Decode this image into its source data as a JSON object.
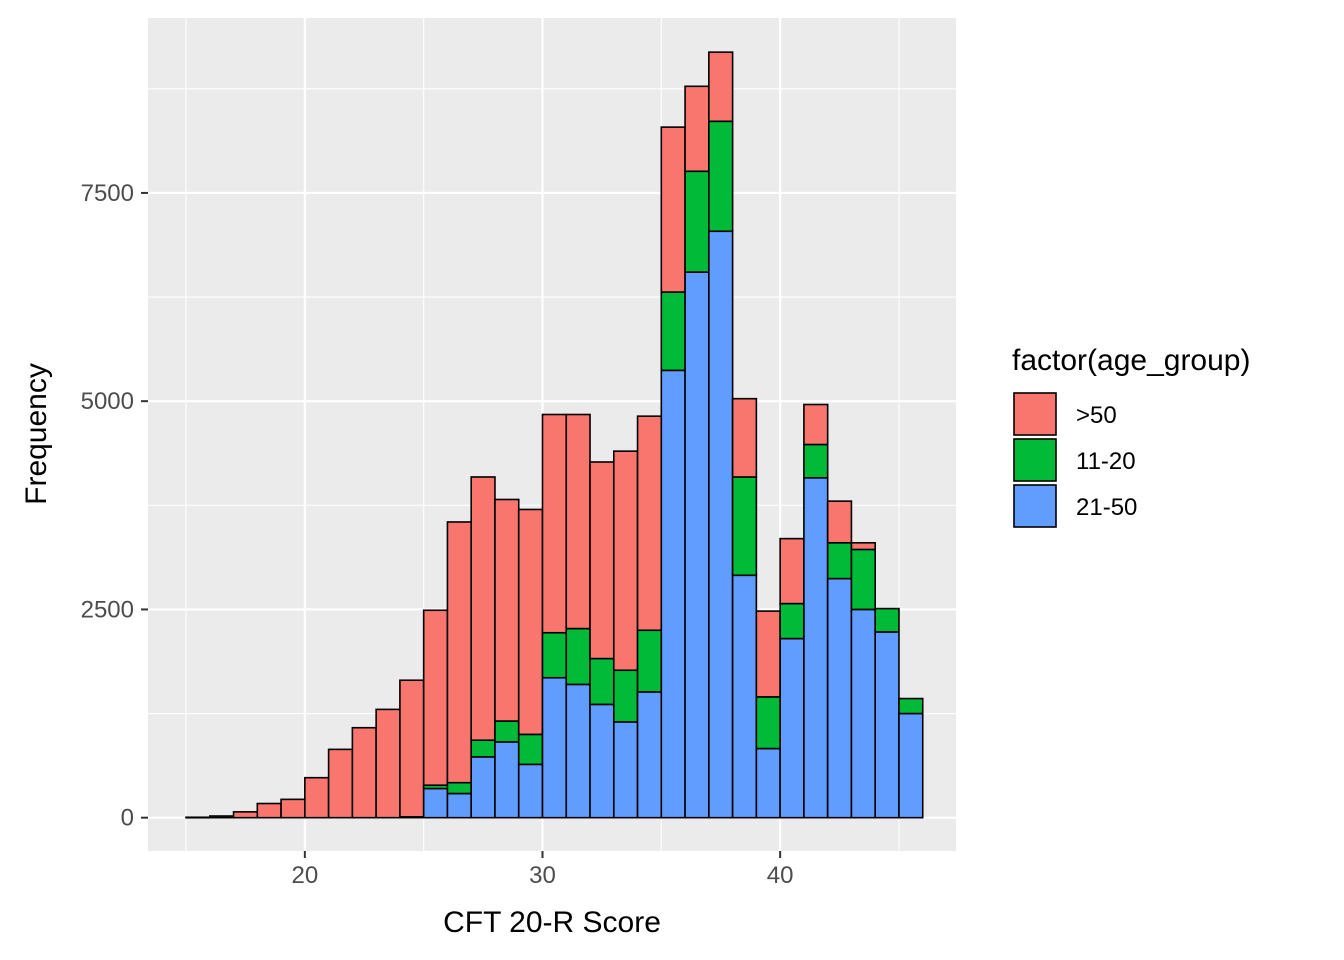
{
  "chart_data": {
    "type": "bar",
    "stacked": true,
    "xlabel": "CFT 20-R Score",
    "ylabel": "Frequency",
    "x_ticks": [
      20,
      30,
      40
    ],
    "y_ticks": [
      0,
      2500,
      5000,
      7500
    ],
    "xlim": [
      13.4,
      47.4
    ],
    "ylim": [
      -400,
      9600
    ],
    "bin_width": 1,
    "bins_start": [
      15,
      16,
      17,
      18,
      19,
      20,
      21,
      22,
      23,
      24,
      25,
      26,
      27,
      28,
      29,
      30,
      31,
      32,
      33,
      34,
      35,
      36,
      37,
      38,
      39,
      40,
      41,
      42,
      43,
      44,
      45
    ],
    "legend": {
      "title": "factor(age_group)",
      "position": "right"
    },
    "grid": true,
    "series": [
      {
        "name": "21-50",
        "color": "#619CFF",
        "values": [
          0,
          0,
          0,
          0,
          0,
          0,
          0,
          0,
          0,
          0,
          350,
          290,
          730,
          910,
          640,
          1680,
          1600,
          1360,
          1150,
          1510,
          5370,
          6550,
          7040,
          2910,
          830,
          2150,
          4080,
          2870,
          2500,
          2230,
          1250
        ]
      },
      {
        "name": "11-20",
        "color": "#00BA38",
        "values": [
          0,
          0,
          0,
          0,
          0,
          0,
          0,
          0,
          0,
          10,
          40,
          130,
          200,
          250,
          360,
          540,
          670,
          550,
          620,
          740,
          940,
          1210,
          1320,
          1180,
          620,
          420,
          400,
          430,
          720,
          280,
          180
        ]
      },
      {
        "name": ">50",
        "color": "#F8766D",
        "values": [
          5,
          20,
          70,
          170,
          220,
          480,
          820,
          1080,
          1300,
          1640,
          2100,
          3130,
          3160,
          2660,
          2700,
          2620,
          2570,
          2360,
          2630,
          2570,
          1980,
          1020,
          830,
          940,
          1030,
          780,
          480,
          500,
          80,
          0,
          0
        ]
      }
    ],
    "legend_order": [
      ">50",
      "11-20",
      "21-50"
    ]
  }
}
